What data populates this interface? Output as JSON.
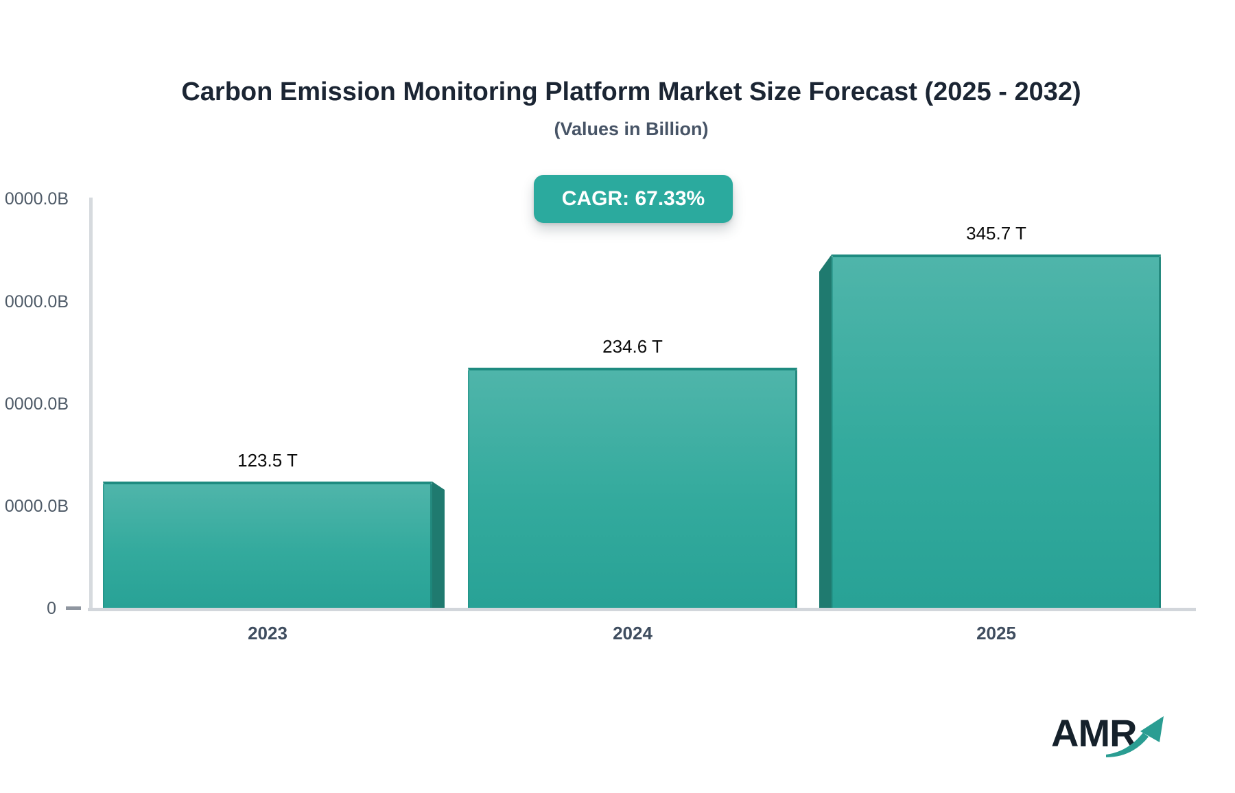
{
  "chart": {
    "title": "Carbon Emission Monitoring Platform Market Size Forecast (2025 - 2032)",
    "subtitle": "(Values in Billion)",
    "cagr_label": "CAGR: 67.33%"
  },
  "chart_data": {
    "type": "bar",
    "title": "Carbon Emission Monitoring Platform Market Size Forecast (2025 - 2032)",
    "subtitle": "(Values in Billion)",
    "cagr_percent": 67.33,
    "categories": [
      "2023",
      "2024",
      "2025"
    ],
    "values": [
      123.5,
      234.6,
      345.7
    ],
    "unit": "T (trillion), axis shown in Billions",
    "bar_labels": [
      "123.5 T",
      "234.6 T",
      "345.7 T"
    ],
    "xlabel": "",
    "ylabel": "",
    "ylim": [
      0,
      400
    ],
    "y_ticks_display": [
      "0000.0B",
      "0000.0B",
      "0000.0B",
      "0000.0B",
      "0"
    ],
    "grid": false,
    "legend": false,
    "bar_color_top": "#4fb5aa",
    "bar_color_bottom": "#28a296"
  },
  "y_tick_note": "labels clipped at left image edge",
  "logo": {
    "text": "AMR",
    "icon": "growth-arrow-icon"
  },
  "colors": {
    "accent_teal": "#2baa9e",
    "bar_border": "#1e8b80",
    "bar_side_dark": "#1f7a6f",
    "axis_line": "#d5d9de",
    "tick_text": "#4e5a67",
    "title_text": "#1b2533",
    "logo_arrow": "#2a9d92"
  }
}
